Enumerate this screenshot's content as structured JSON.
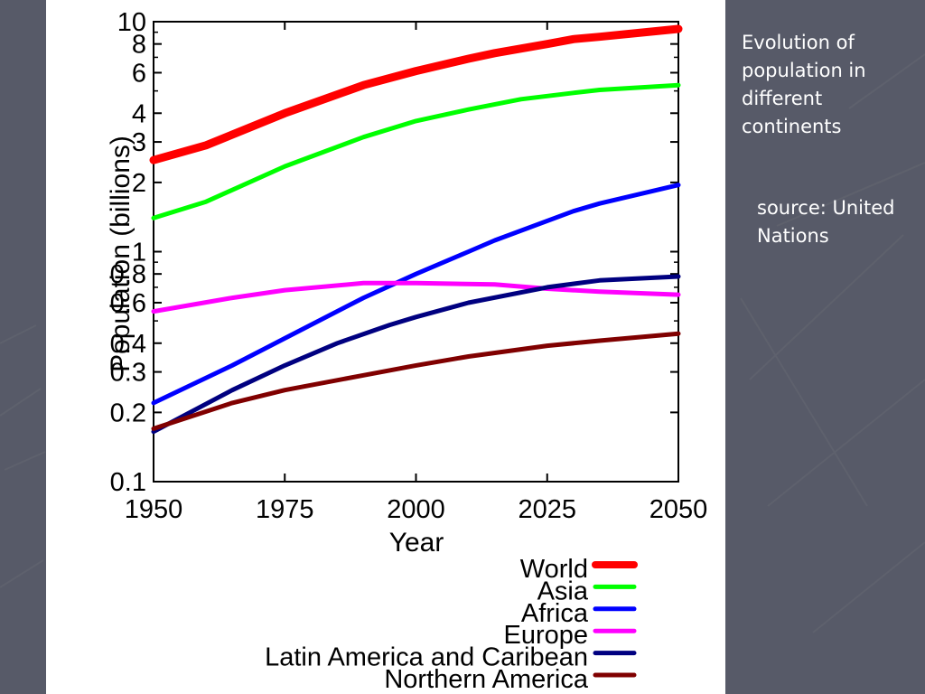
{
  "slide": {
    "note_title": "Evolution of population in different continents",
    "note_source": "source: United Nations",
    "background_color": "#575a68"
  },
  "chart_data": {
    "type": "line",
    "title": "",
    "xlabel": "Year",
    "ylabel": "Population (billions)",
    "xlim": [
      1950,
      2050
    ],
    "ylim": [
      0.1,
      10
    ],
    "yscale": "log",
    "grid": false,
    "legend_position": "bottom-right, below plot",
    "x_ticks": [
      1950,
      1975,
      2000,
      2025,
      2050
    ],
    "y_ticks": [
      0.1,
      0.2,
      0.3,
      0.4,
      0.6,
      0.8,
      1,
      2,
      3,
      4,
      6,
      8,
      10
    ],
    "series": [
      {
        "name": "World",
        "color": "#ff0000",
        "x": [
          1950,
          1960,
          1975,
          1990,
          2000,
          2010,
          2015,
          2025,
          2030,
          2035,
          2050
        ],
        "y": [
          2.5,
          2.9,
          4.0,
          5.3,
          6.1,
          6.9,
          7.3,
          8.0,
          8.4,
          8.6,
          9.3
        ]
      },
      {
        "name": "Asia",
        "color": "#00ff00",
        "x": [
          1950,
          1960,
          1975,
          1990,
          2000,
          2010,
          2020,
          2030,
          2035,
          2050
        ],
        "y": [
          1.4,
          1.65,
          2.35,
          3.15,
          3.7,
          4.15,
          4.6,
          4.9,
          5.05,
          5.3
        ]
      },
      {
        "name": "Africa",
        "color": "#0000ff",
        "x": [
          1950,
          1965,
          1975,
          1990,
          2000,
          2010,
          2015,
          2030,
          2035,
          2050
        ],
        "y": [
          0.22,
          0.32,
          0.42,
          0.63,
          0.8,
          1.0,
          1.12,
          1.5,
          1.62,
          1.95
        ]
      },
      {
        "name": "Europe",
        "color": "#ff00ff",
        "x": [
          1950,
          1965,
          1975,
          1990,
          2000,
          2015,
          2025,
          2035,
          2050
        ],
        "y": [
          0.55,
          0.63,
          0.68,
          0.73,
          0.73,
          0.72,
          0.69,
          0.67,
          0.65
        ]
      },
      {
        "name": "Latin America and Caribean",
        "color": "#000080",
        "x": [
          1950,
          1965,
          1975,
          1985,
          1995,
          2000,
          2010,
          2025,
          2035,
          2050
        ],
        "y": [
          0.165,
          0.25,
          0.32,
          0.4,
          0.48,
          0.52,
          0.6,
          0.7,
          0.75,
          0.78
        ]
      },
      {
        "name": "Northern America",
        "color": "#800000",
        "x": [
          1950,
          1965,
          1975,
          1990,
          2000,
          2010,
          2025,
          2035,
          2050
        ],
        "y": [
          0.17,
          0.22,
          0.25,
          0.29,
          0.32,
          0.35,
          0.39,
          0.41,
          0.44
        ]
      }
    ]
  }
}
